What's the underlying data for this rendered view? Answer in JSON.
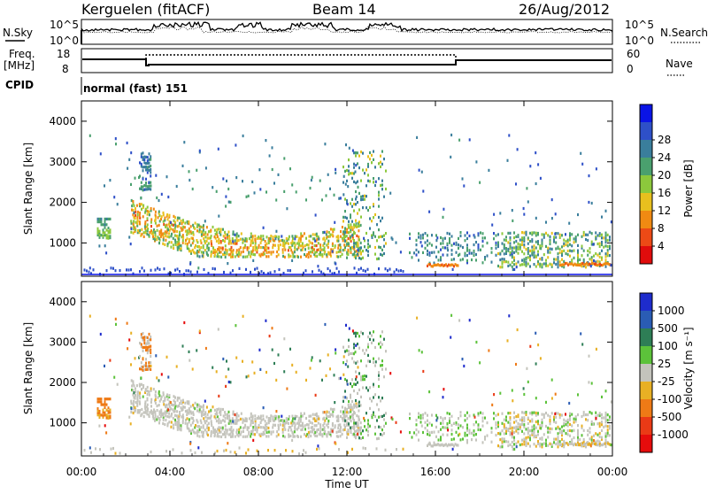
{
  "header": {
    "station": "Kerguelen (fitACF)",
    "beam": "Beam 14",
    "date": "26/Aug/2012"
  },
  "noise_panel": {
    "left_label": "N.Sky",
    "right_label": "N.Search",
    "left_ticks": [
      "10^5",
      "10^0"
    ],
    "right_ticks": [
      "10^5",
      "10^0"
    ]
  },
  "freq_panel": {
    "left_label_1": "Freq.",
    "left_label_2": "[MHz]",
    "left_ticks": [
      "18",
      "8"
    ],
    "right_ticks": [
      "60",
      "0"
    ],
    "right_label": "Nave"
  },
  "cpid_panel": {
    "label": "CPID",
    "value": "normal (fast) 151"
  },
  "chart_data": [
    {
      "type": "heatmap",
      "name": "power",
      "ylabel": "Slant Range [km]",
      "ylim": [
        180,
        4500
      ],
      "yticks": [
        1000,
        2000,
        3000,
        4000
      ],
      "xlim": [
        0,
        24
      ],
      "colorbar": {
        "label": "Power [dB]",
        "ticks": [
          "4",
          "8",
          "12",
          "16",
          "20",
          "24",
          "28"
        ],
        "colors": [
          "#0a14e6",
          "#2e50c8",
          "#3a7e9c",
          "#4aa06e",
          "#8cc83c",
          "#e8c01e",
          "#f08a12",
          "#ec4a16",
          "#e00c0c"
        ]
      }
    },
    {
      "type": "heatmap",
      "name": "velocity",
      "ylabel": "Slant Range [km]",
      "ylim": [
        180,
        4500
      ],
      "yticks": [
        1000,
        2000,
        3000,
        4000
      ],
      "xlim": [
        0,
        24
      ],
      "colorbar": {
        "label": "Velocity [m s⁻¹]",
        "ticks": [
          "1000",
          "500",
          "100",
          "25",
          "-25",
          "-100",
          "-500",
          "-1000"
        ],
        "colors": [
          "#1e2ccc",
          "#2a5cb4",
          "#2e7e56",
          "#5cc23a",
          "#c4c4bc",
          "#e8b024",
          "#ee7a16",
          "#ea3a16",
          "#e60c0c"
        ]
      }
    }
  ],
  "x_axis": {
    "label": "Time UT",
    "ticks": [
      "00:00",
      "04:00",
      "08:00",
      "12:00",
      "16:00",
      "20:00",
      "00:00"
    ]
  }
}
